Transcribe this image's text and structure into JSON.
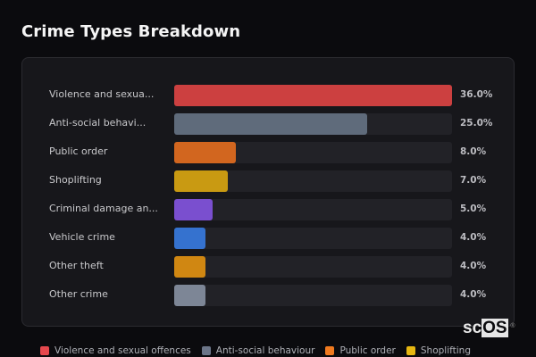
{
  "title": "Crime Types Breakdown",
  "chart_data": {
    "type": "bar",
    "orientation": "horizontal",
    "title": "Crime Types Breakdown",
    "xlabel": "",
    "ylabel": "",
    "xlim": [
      0,
      36
    ],
    "unit": "%",
    "categories": [
      "Violence and sexual offences",
      "Anti-social behaviour",
      "Public order",
      "Shoplifting",
      "Criminal damage and arson",
      "Vehicle crime",
      "Other theft",
      "Other crime"
    ],
    "display_labels": [
      "Violence and sexua...",
      "Anti-social behavi...",
      "Public order",
      "Shoplifting",
      "Criminal damage an...",
      "Vehicle crime",
      "Other theft",
      "Other crime"
    ],
    "values": [
      36.0,
      25.0,
      8.0,
      7.0,
      5.0,
      4.0,
      4.0,
      4.0
    ],
    "value_labels": [
      "36.0%",
      "25.0%",
      "8.0%",
      "7.0%",
      "5.0%",
      "4.0%",
      "4.0%",
      "4.0%"
    ],
    "colors": [
      "#cc4040",
      "#5f6b7b",
      "#d2661f",
      "#c99a12",
      "#7a4fcf",
      "#3572cf",
      "#d08712",
      "#7d8696"
    ],
    "grid": false,
    "legend_position": "bottom",
    "legend": [
      {
        "label": "Violence and sexual offences",
        "color": "#e5484d"
      },
      {
        "label": "Anti-social behaviour",
        "color": "#6b7588"
      },
      {
        "label": "Public order",
        "color": "#f07a1f"
      },
      {
        "label": "Shoplifting",
        "color": "#e6b711"
      }
    ]
  },
  "logo": {
    "text_a": "sc",
    "text_b": "OS",
    "mark": "®"
  }
}
